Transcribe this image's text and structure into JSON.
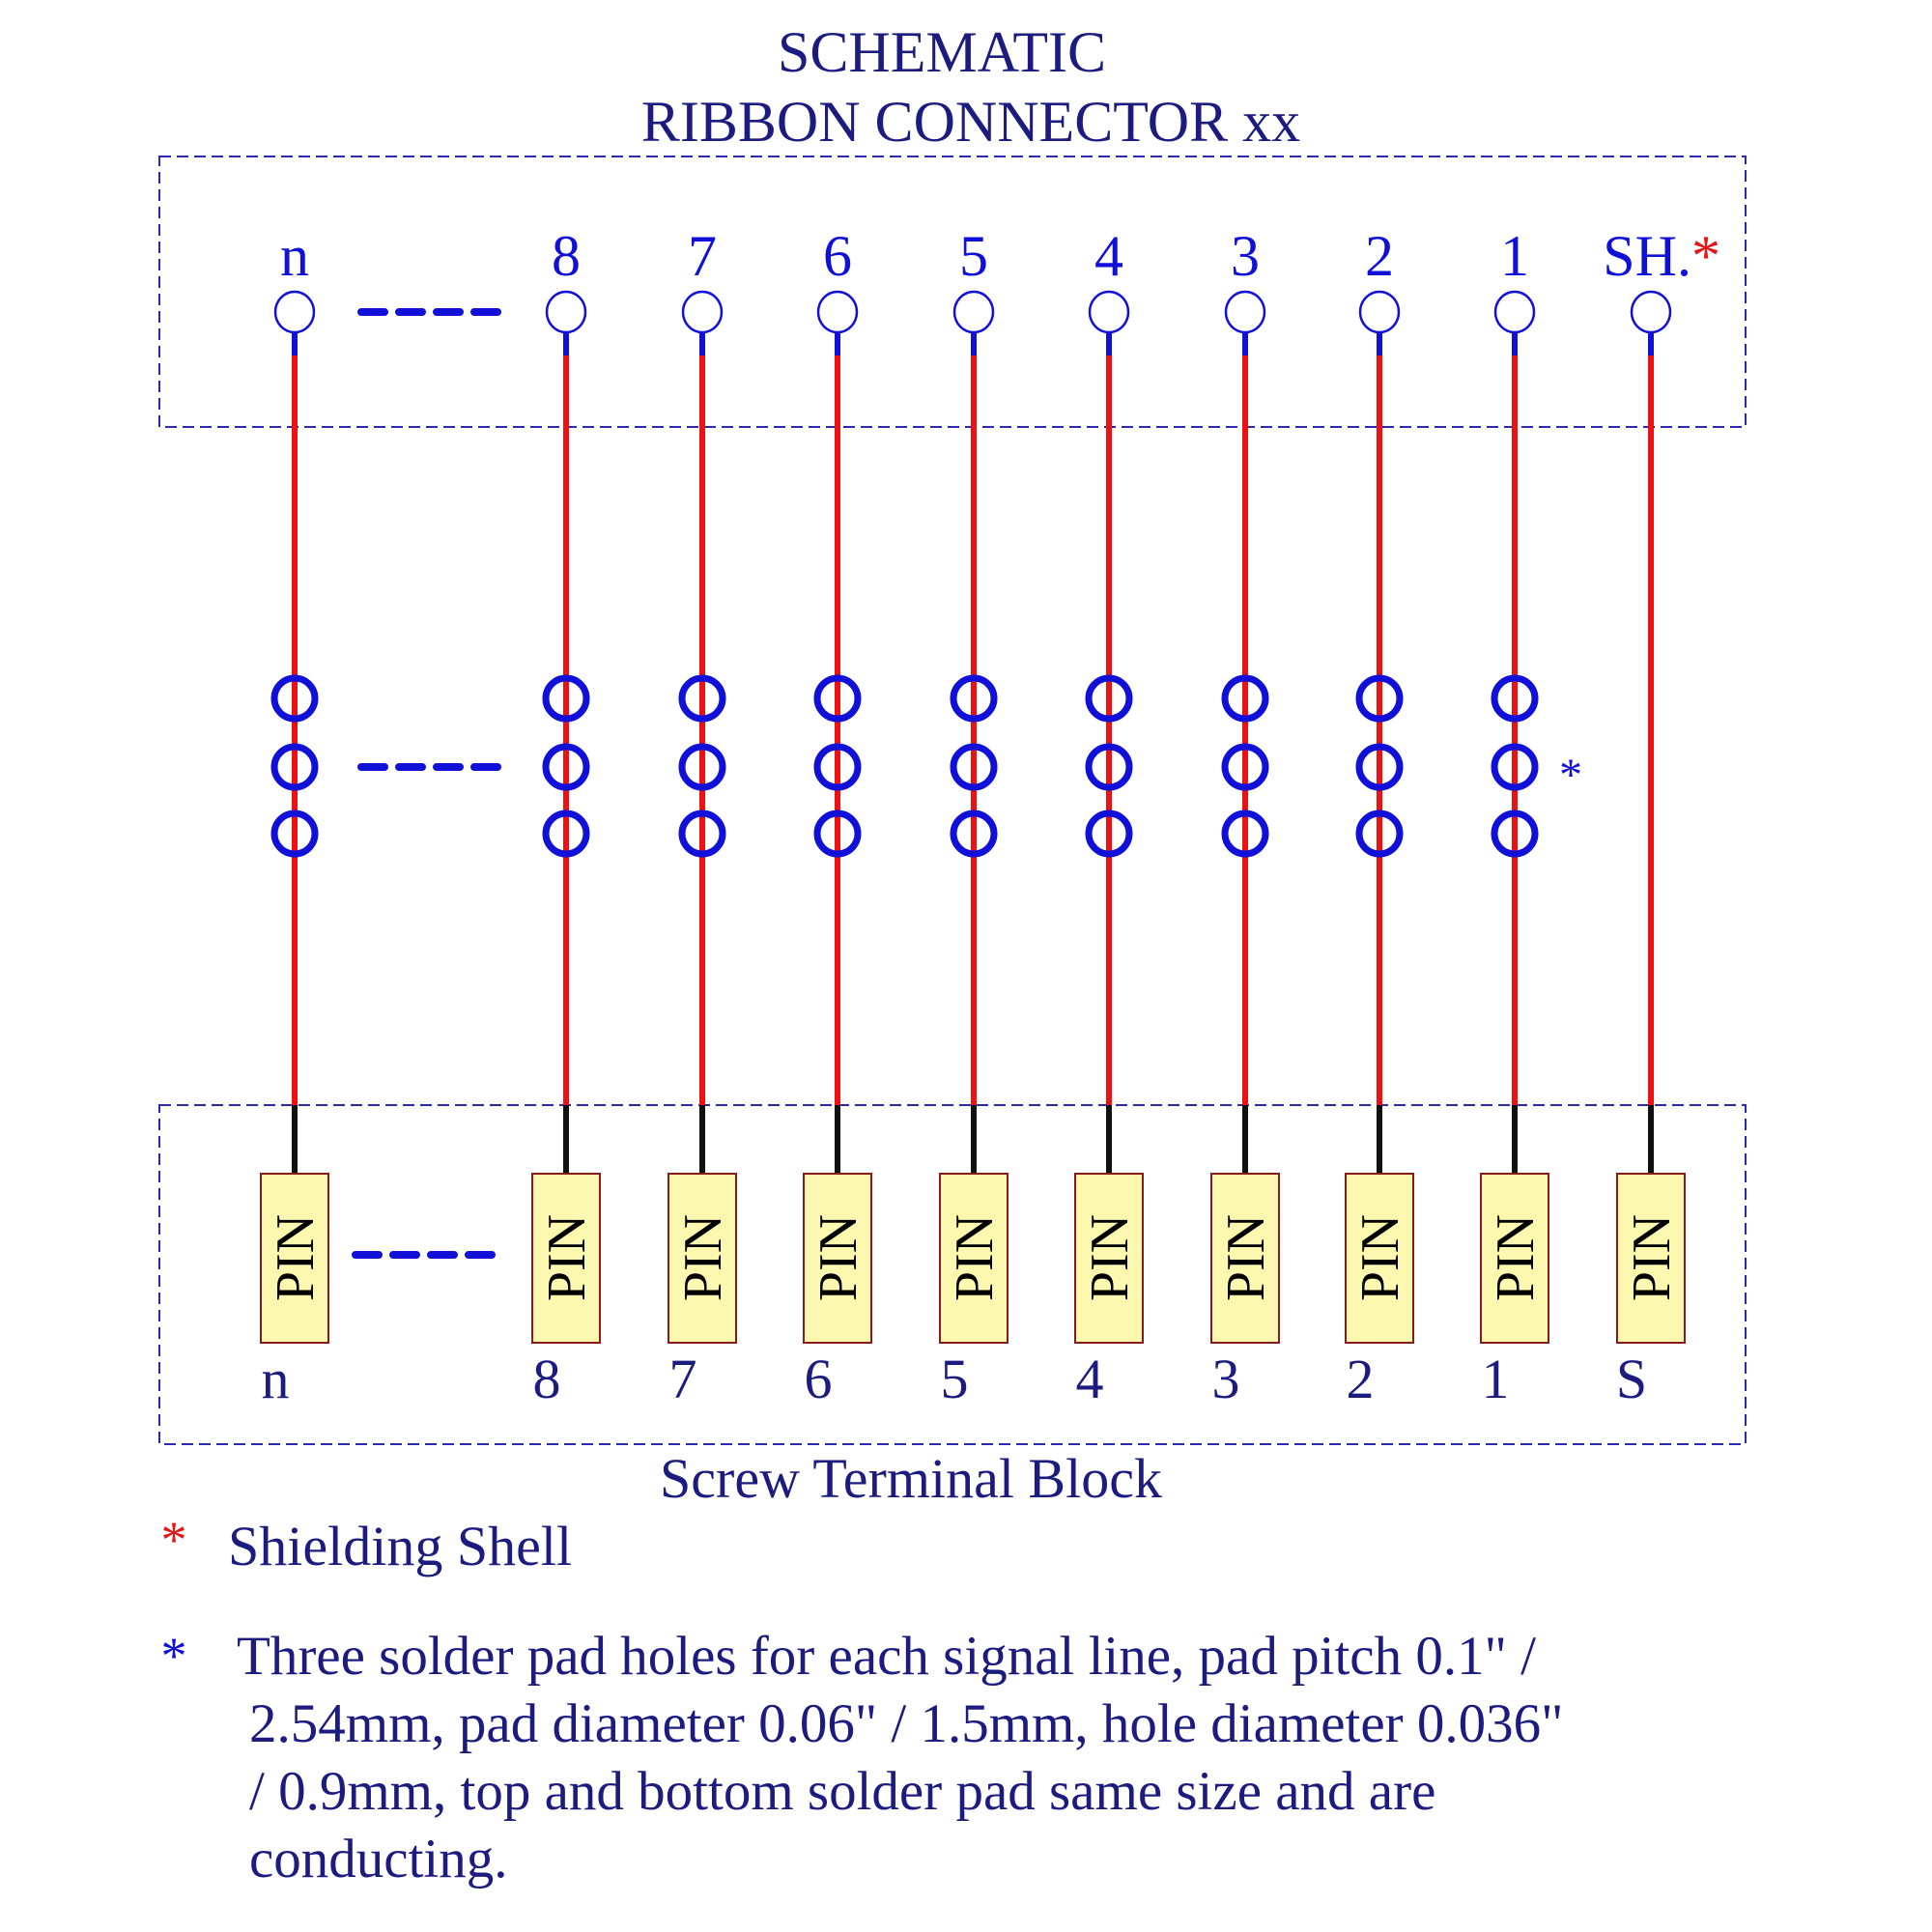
{
  "title": {
    "line1": "SCHEMATIC",
    "line2": "RIBBON CONNECTOR xx"
  },
  "columns": [
    {
      "top_label": "n",
      "bottom_label": "n",
      "pin_label": "PIN",
      "pads": true
    },
    {
      "top_label": "8",
      "bottom_label": "8",
      "pin_label": "PIN",
      "pads": true
    },
    {
      "top_label": "7",
      "bottom_label": "7",
      "pin_label": "PIN",
      "pads": true
    },
    {
      "top_label": "6",
      "bottom_label": "6",
      "pin_label": "PIN",
      "pads": true
    },
    {
      "top_label": "5",
      "bottom_label": "5",
      "pin_label": "PIN",
      "pads": true
    },
    {
      "top_label": "4",
      "bottom_label": "4",
      "pin_label": "PIN",
      "pads": true
    },
    {
      "top_label": "3",
      "bottom_label": "3",
      "pin_label": "PIN",
      "pads": true
    },
    {
      "top_label": "2",
      "bottom_label": "2",
      "pin_label": "PIN",
      "pads": true
    },
    {
      "top_label": "1",
      "bottom_label": "1",
      "pin_label": "PIN",
      "pads": true
    },
    {
      "top_label": "SH.",
      "top_label_mark": "*",
      "bottom_label": "S",
      "pin_label": "PIN",
      "pads": false
    }
  ],
  "pad_note_mark": "*",
  "terminal_block_label": "Screw Terminal  Block",
  "legend": {
    "shield": {
      "mark": "*",
      "text": "Shielding   Shell"
    },
    "pads": {
      "mark": "*",
      "lines": [
        "Three solder pad holes for each signal line, pad pitch 0.1\" /",
        "2.54mm, pad diameter 0.06\" / 1.5mm, hole diameter 0.036\"",
        "/ 0.9mm, top and bottom solder pad same size and are",
        "conducting."
      ]
    }
  },
  "colors": {
    "wire": "#ee1111",
    "pad": "#1010d8",
    "text": "#1c1c80",
    "pin_fill": "#fdf8b0",
    "pin_border": "#8b1a1a",
    "box_dash": "#2a2ab0",
    "star_red": "#e01818"
  }
}
